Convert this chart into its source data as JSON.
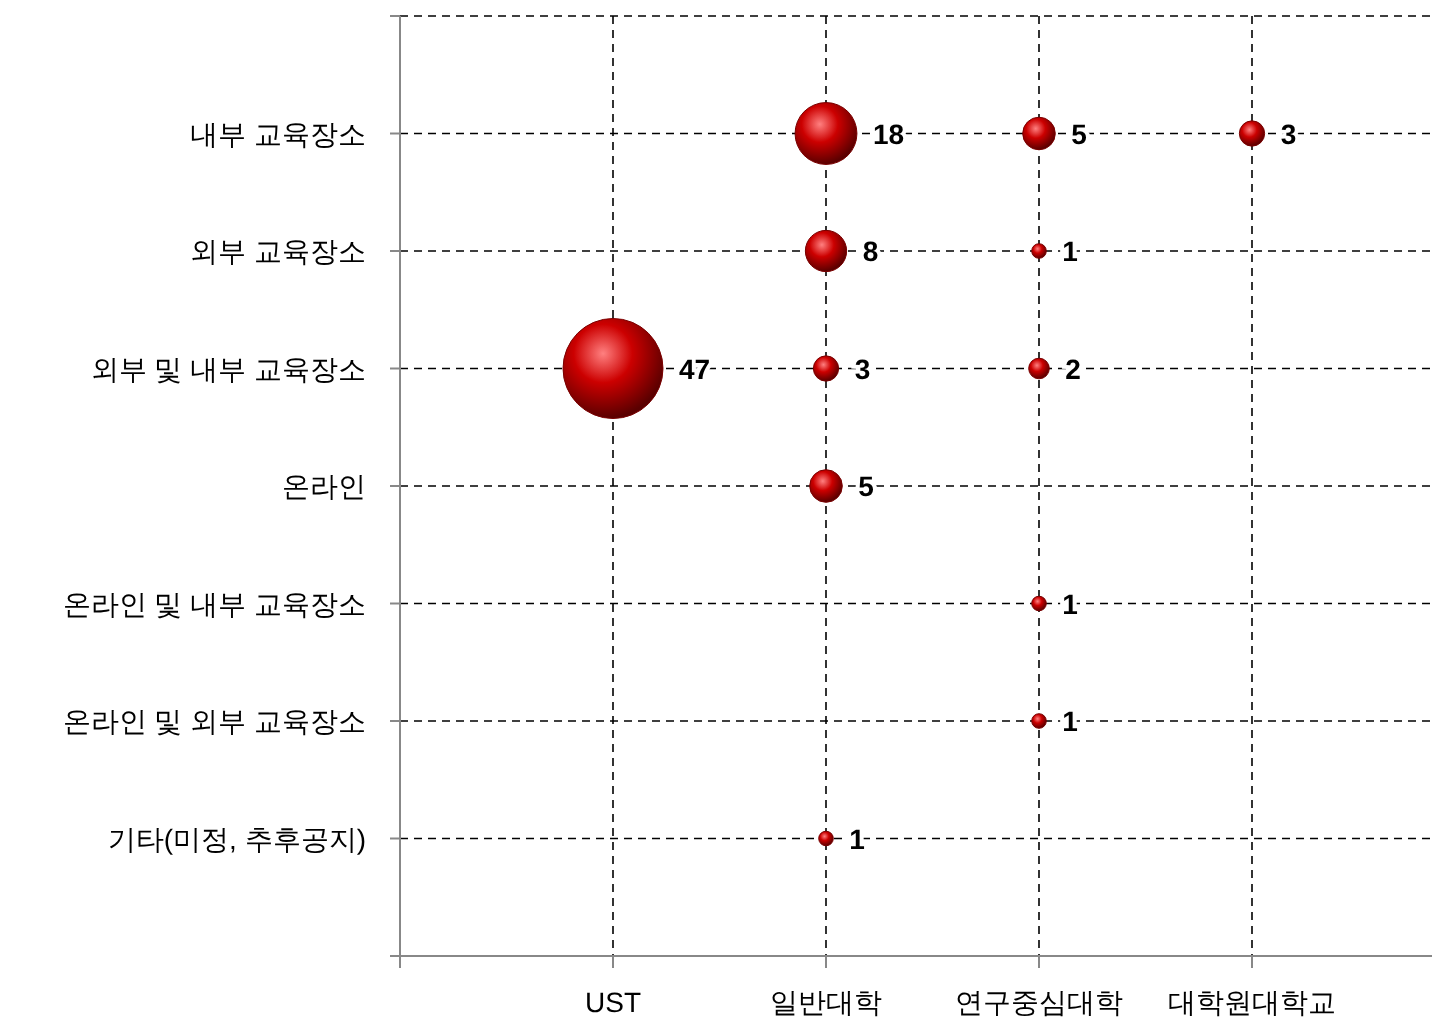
{
  "chart_data": {
    "type": "heatmap",
    "marker": "circle",
    "categories": [
      "UST",
      "일반대학",
      "연구중심대학",
      "대학원대학교"
    ],
    "y_categories": [
      "내부 교육장소",
      "외부 교육장소",
      "외부 및 내부 교육장소",
      "온라인",
      "온라인 및 내부 교육장소",
      "온라인 및 외부 교육장소",
      "기타(미정, 추후공지)"
    ],
    "cells": [
      [
        null,
        18,
        5,
        3
      ],
      [
        null,
        8,
        1,
        null
      ],
      [
        47,
        3,
        2,
        null
      ],
      [
        null,
        5,
        null,
        null
      ],
      [
        null,
        null,
        1,
        null
      ],
      [
        null,
        null,
        1,
        null
      ],
      [
        null,
        1,
        null,
        null
      ]
    ],
    "color": "#cc0000",
    "data_labels": true,
    "grid": true
  }
}
